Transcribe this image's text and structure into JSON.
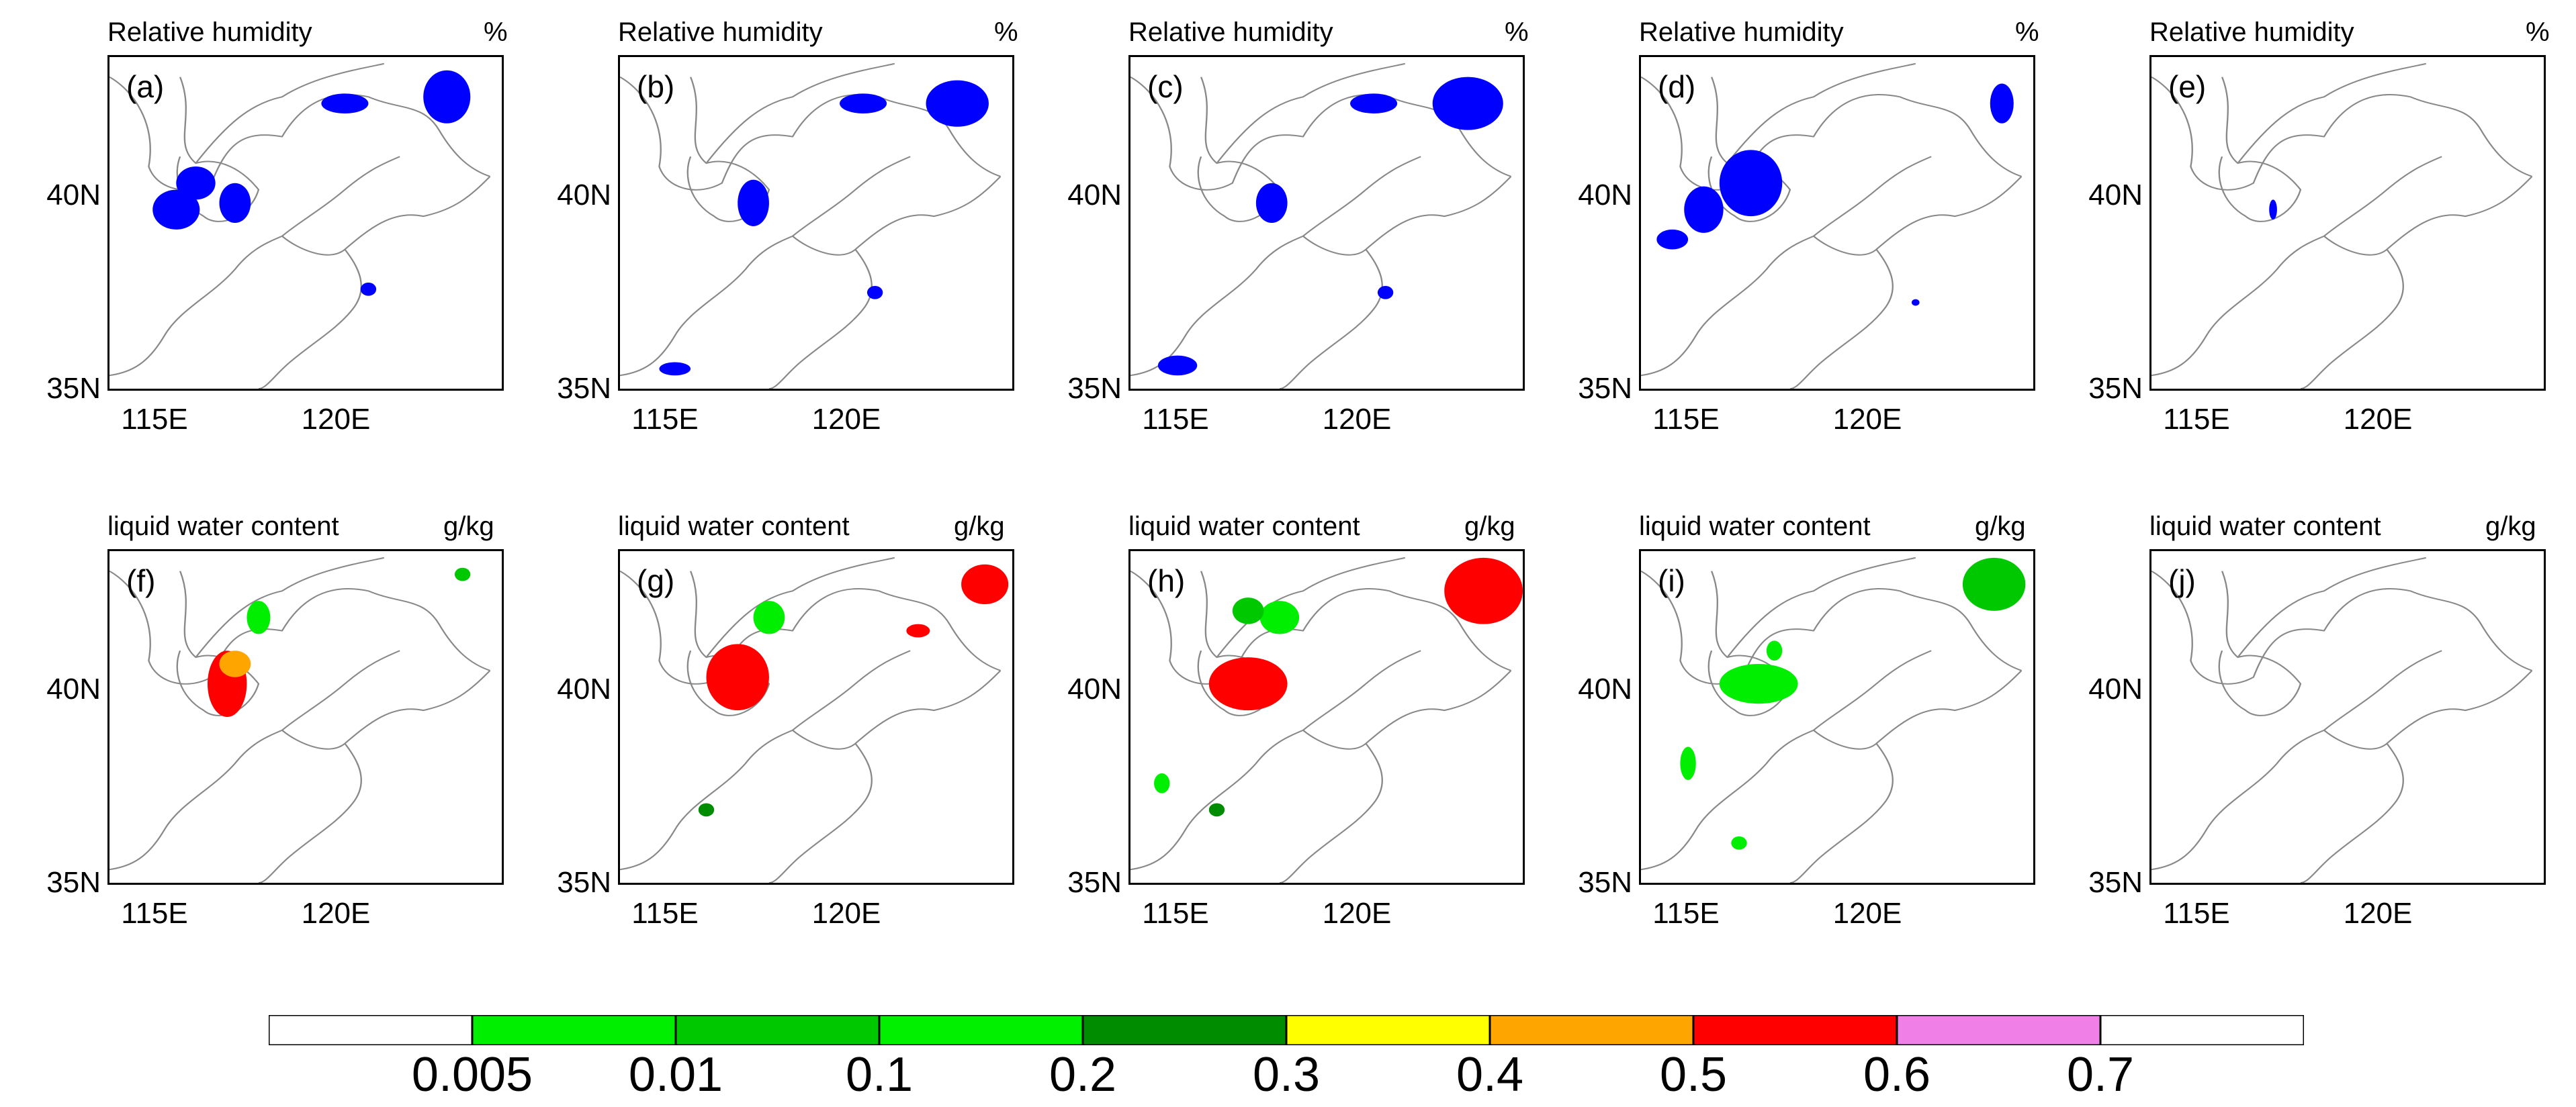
{
  "colors": {
    "rh_blue": "#0000ff",
    "coast": "#888888",
    "frame": "#000000"
  },
  "row1": {
    "title": "Relative humidity",
    "unit": "%",
    "panels": [
      {
        "label": "(a)",
        "lat_ticks": [
          "40N",
          "35N"
        ],
        "lon_ticks": [
          "115E",
          "120E"
        ]
      },
      {
        "label": "(b)",
        "lat_ticks": [
          "40N",
          "35N"
        ],
        "lon_ticks": [
          "115E",
          "120E"
        ]
      },
      {
        "label": "(c)",
        "lat_ticks": [
          "40N",
          "35N"
        ],
        "lon_ticks": [
          "115E",
          "120E"
        ]
      },
      {
        "label": "(d)",
        "lat_ticks": [
          "40N",
          "35N"
        ],
        "lon_ticks": [
          "115E",
          "120E"
        ]
      },
      {
        "label": "(e)",
        "lat_ticks": [
          "40N",
          "35N"
        ],
        "lon_ticks": [
          "115E",
          "120E"
        ]
      }
    ]
  },
  "row2": {
    "title": "liquid water content",
    "unit": "g/kg",
    "panels": [
      {
        "label": "(f)",
        "lat_ticks": [
          "40N",
          "35N"
        ],
        "lon_ticks": [
          "115E",
          "120E"
        ]
      },
      {
        "label": "(g)",
        "lat_ticks": [
          "40N",
          "35N"
        ],
        "lon_ticks": [
          "115E",
          "120E"
        ]
      },
      {
        "label": "(h)",
        "lat_ticks": [
          "40N",
          "35N"
        ],
        "lon_ticks": [
          "115E",
          "120E"
        ]
      },
      {
        "label": "(i)",
        "lat_ticks": [
          "40N",
          "35N"
        ],
        "lon_ticks": [
          "115E",
          "120E"
        ]
      },
      {
        "label": "(j)",
        "lat_ticks": [
          "40N",
          "35N"
        ],
        "lon_ticks": [
          "115E",
          "120E"
        ]
      }
    ]
  },
  "colorbar": {
    "colors": [
      "#ffffff",
      "#00ee00",
      "#00c800",
      "#00f000",
      "#008c00",
      "#ffff00",
      "#ffa500",
      "#ff0000",
      "#f080e8",
      "#ffffff"
    ],
    "tick_labels": [
      "0.005",
      "0.01",
      "0.1",
      "0.2",
      "0.3",
      "0.4",
      "0.5",
      "0.6",
      "0.7"
    ]
  }
}
